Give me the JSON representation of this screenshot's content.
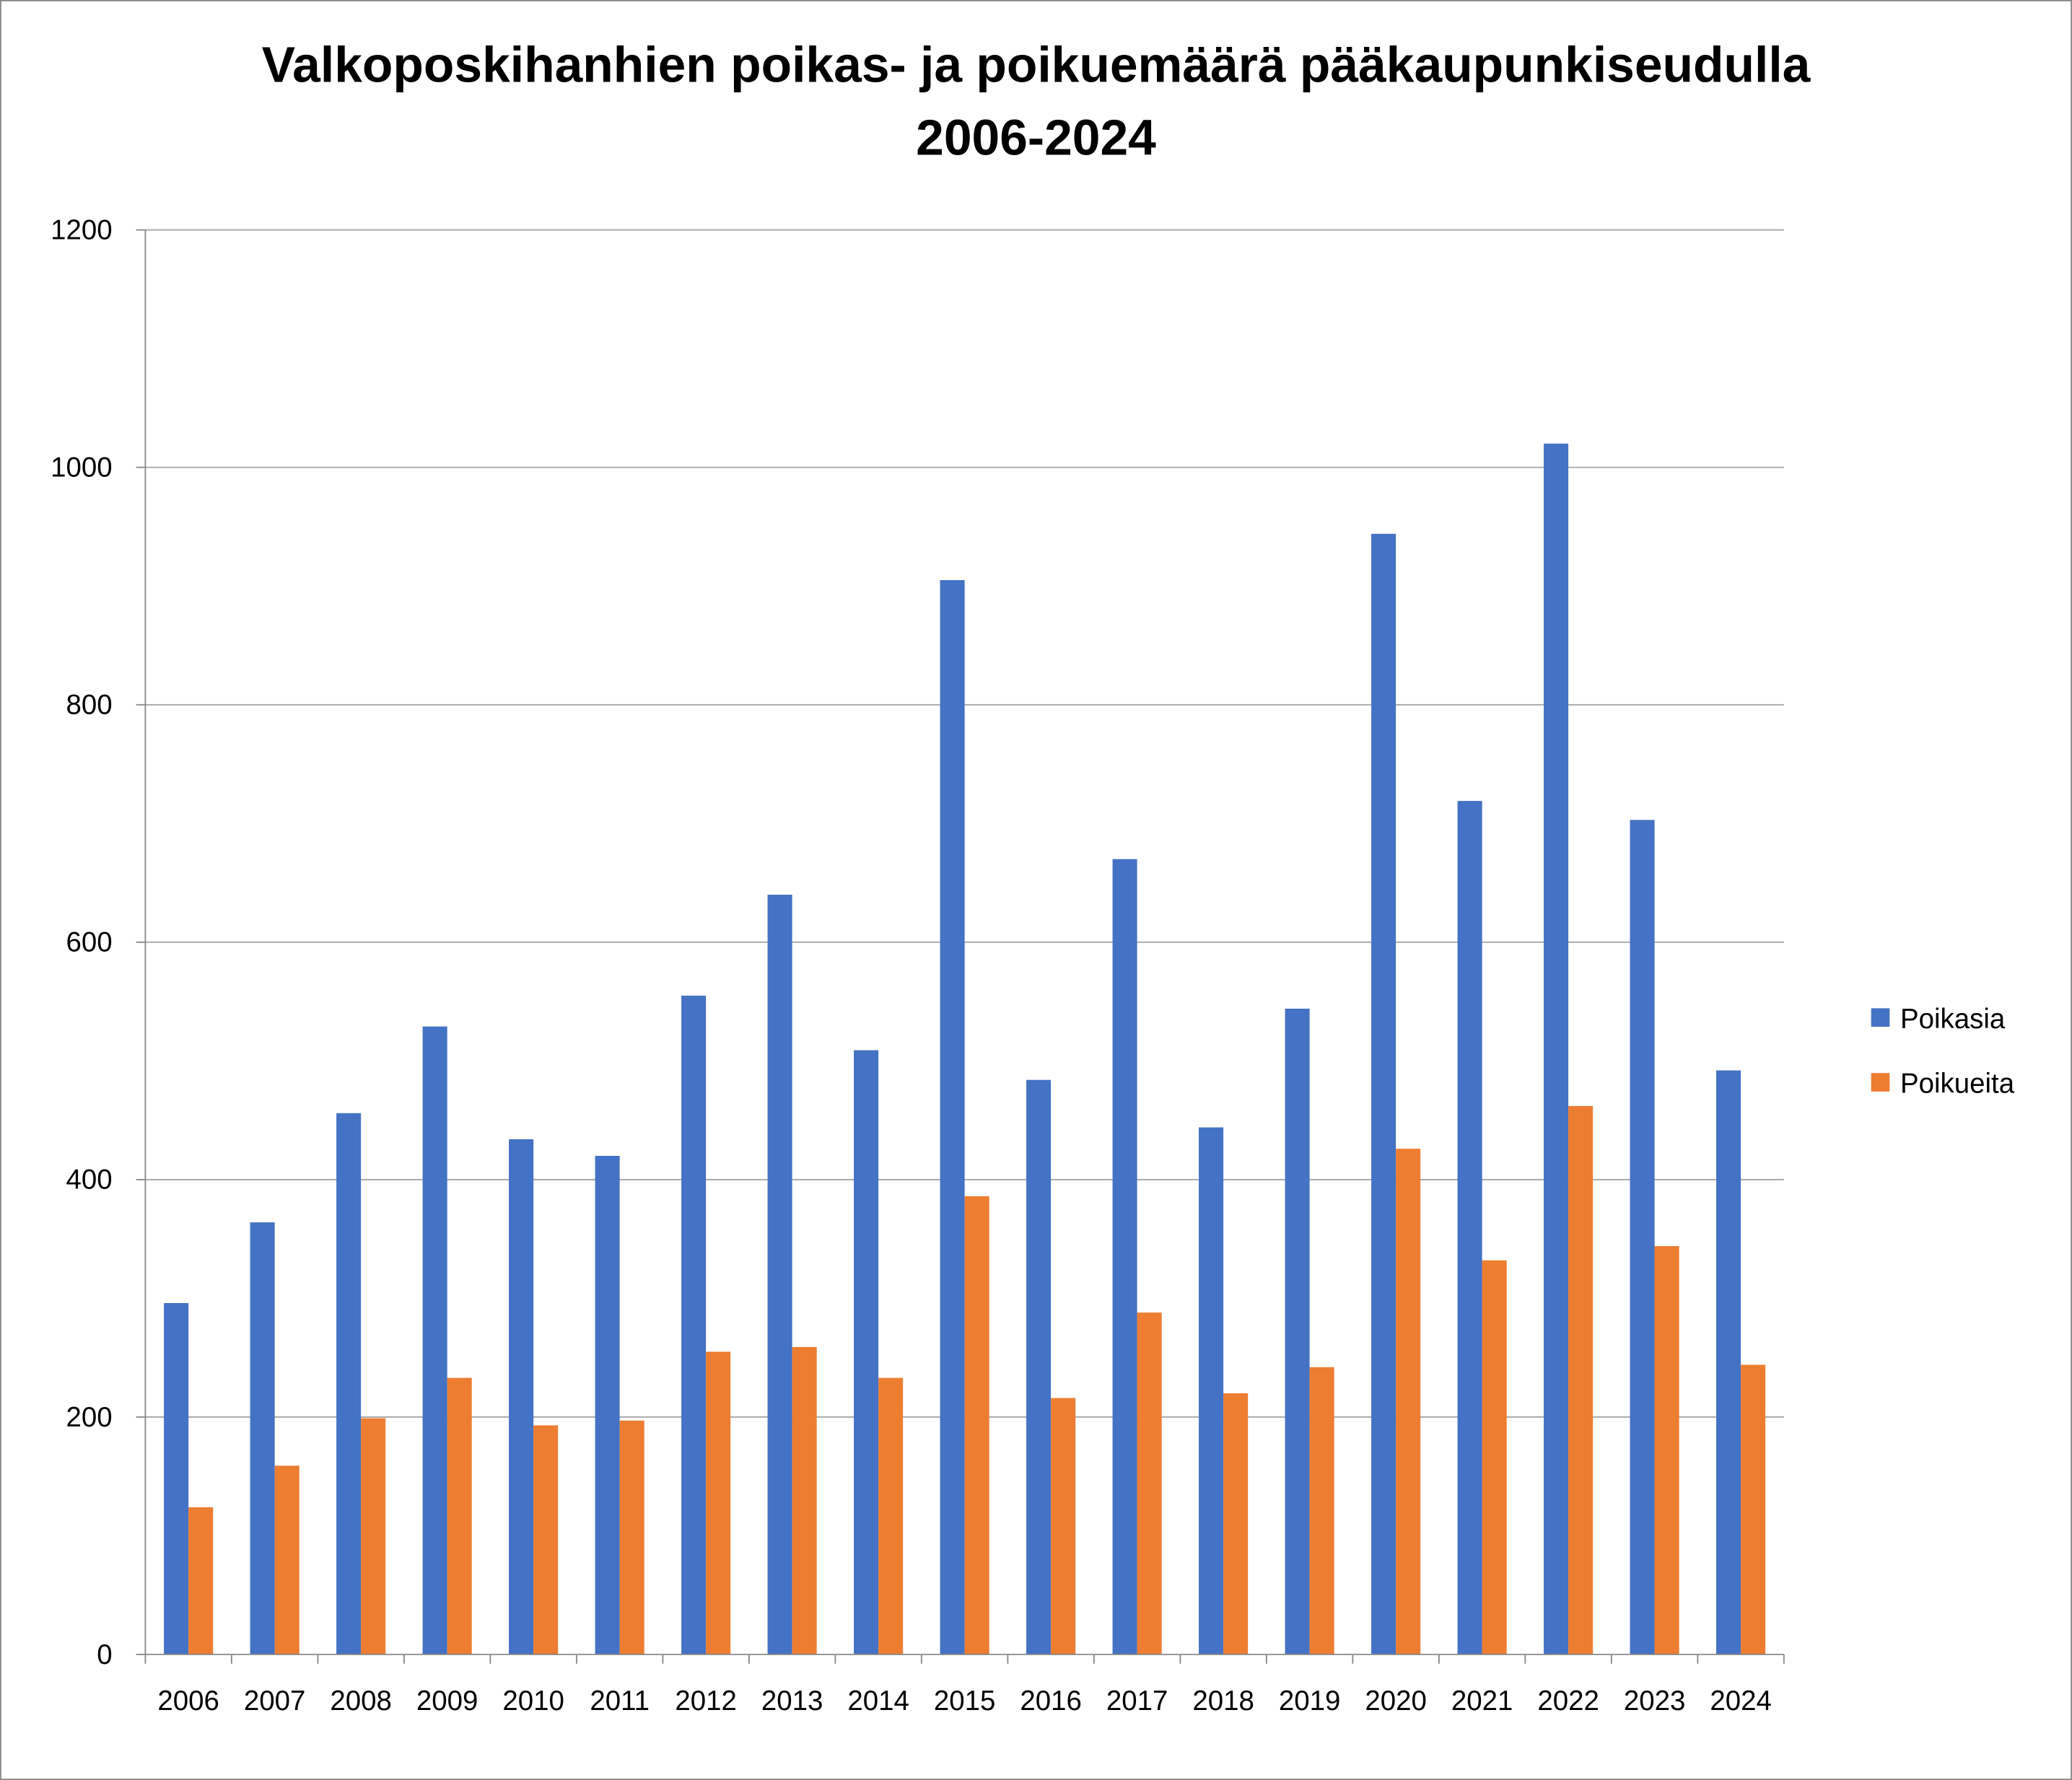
{
  "chart_data": {
    "type": "bar",
    "title": "Valkoposkihanhien poikas- ja poikuemäärä pääkaupunkiseudulla 2006-2024",
    "title_lines": [
      "Valkoposkihanhien poikas- ja poikuemäärä pääkaupunkiseudulla",
      "2006-2024"
    ],
    "xlabel": "",
    "ylabel": "",
    "ylim": [
      0,
      1200
    ],
    "yticks": [
      0,
      200,
      400,
      600,
      800,
      1000,
      1200
    ],
    "grid": true,
    "legend_position": "right",
    "categories": [
      "2006",
      "2007",
      "2008",
      "2009",
      "2010",
      "2011",
      "2012",
      "2013",
      "2014",
      "2015",
      "2016",
      "2017",
      "2018",
      "2019",
      "2020",
      "2021",
      "2022",
      "2023",
      "2024"
    ],
    "series": [
      {
        "name": "Poikasia",
        "color": "#4472C4",
        "values": [
          296,
          364,
          456,
          529,
          434,
          420,
          555,
          640,
          509,
          905,
          484,
          670,
          444,
          544,
          944,
          719,
          1020,
          703,
          492
        ]
      },
      {
        "name": "Poikueita",
        "color": "#ED7D31",
        "values": [
          124,
          159,
          199,
          233,
          193,
          197,
          255,
          259,
          233,
          386,
          216,
          288,
          220,
          242,
          426,
          332,
          462,
          344,
          244
        ]
      }
    ]
  }
}
